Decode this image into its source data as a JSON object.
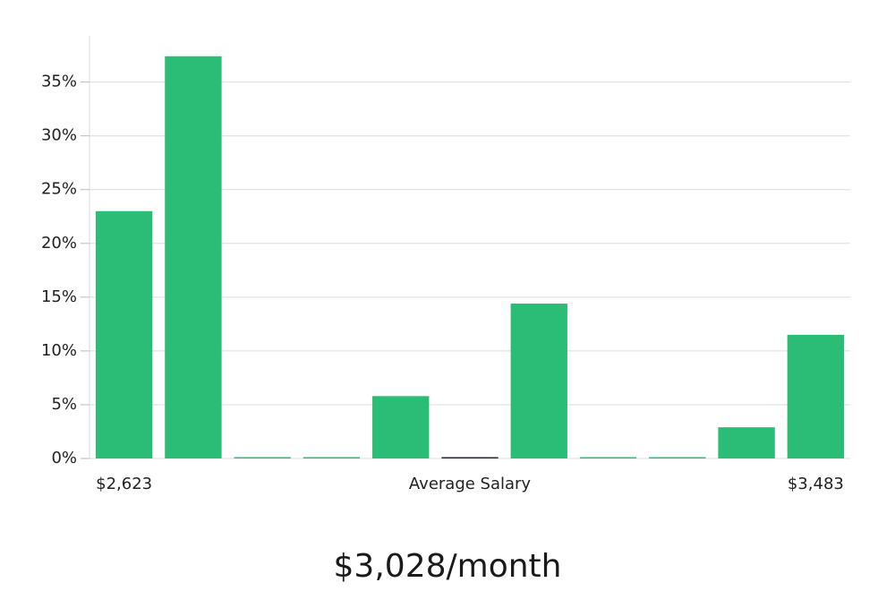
{
  "chart_data": {
    "type": "bar",
    "categories": [
      "$2,623",
      null,
      null,
      null,
      null,
      null,
      null,
      null,
      null,
      null,
      "$3,483"
    ],
    "values": [
      23,
      37.4,
      0,
      0,
      5.8,
      0,
      14.4,
      0,
      0,
      2.9,
      11.5
    ],
    "colors": [
      "#2bbd76",
      "#2bbd76",
      "#2bbd76",
      "#2bbd76",
      "#2bbd76",
      "#1f2a36",
      "#2bbd76",
      "#2bbd76",
      "#2bbd76",
      "#2bbd76",
      "#2bbd76"
    ],
    "x_label": "Average Salary",
    "subtitle": "$3,028/month",
    "ylim": [
      0,
      39.3
    ],
    "yticks": [
      {
        "value": 0,
        "label": "0%"
      },
      {
        "value": 5,
        "label": "5%"
      },
      {
        "value": 10,
        "label": "10%"
      },
      {
        "value": 15,
        "label": "15%"
      },
      {
        "value": 20,
        "label": "20%"
      },
      {
        "value": 25,
        "label": "25%"
      },
      {
        "value": 30,
        "label": "30%"
      },
      {
        "value": 35,
        "label": "35%"
      }
    ],
    "grid": true
  }
}
